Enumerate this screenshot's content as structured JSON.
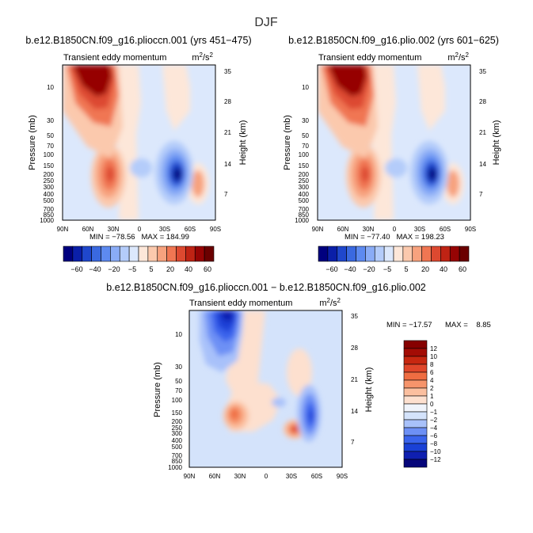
{
  "figure": {
    "title": "DJF",
    "diff_title": "b.e12.B1850CN.f09_g16.plioccn.001 − b.e12.B1850CN.f09_g16.plio.002"
  },
  "colors": {
    "main_scale": [
      "#00007f",
      "#0a1fa8",
      "#1f47cc",
      "#3a69e0",
      "#5d8af0",
      "#8aacf6",
      "#b4ccfa",
      "#dce8fc",
      "#fde7d9",
      "#fbc9ad",
      "#f7a27e",
      "#f07652",
      "#dd4930",
      "#bf2314",
      "#960404",
      "#6b0000"
    ],
    "diff_scale": [
      "#06067a",
      "#0f1fb0",
      "#1a41d6",
      "#3a64ec",
      "#6d90f5",
      "#a8c1fa",
      "#d4e3fb",
      "#f0f4fb",
      "#fde0cf",
      "#fbbf9f",
      "#f6946b",
      "#ef6d42",
      "#e0462a",
      "#c72710",
      "#a30c05",
      "#860000"
    ]
  },
  "chart_data": [
    {
      "type": "heatmap",
      "title": "b.e12.B1850CN.f09_g16.plioccn.001 (yrs 451−475)",
      "subtitle": "Transient eddy momentum",
      "units": "m²/s²",
      "ylabel": "Pressure (mb)",
      "y2label": "Height (km)",
      "x_ticks": [
        "90N",
        "60N",
        "30N",
        "0",
        "30S",
        "60S",
        "90S"
      ],
      "y_ticks": [
        "10",
        "30",
        "50",
        "70",
        "100",
        "150",
        "200",
        "250",
        "300",
        "400",
        "500",
        "700",
        "850",
        "1000"
      ],
      "y2_ticks": [
        "35",
        "28",
        "21",
        "14",
        "7"
      ],
      "minmax": "MIN = −78.56   MAX = 184.99",
      "colorbar_labels": [
        "−60",
        "−40",
        "−20",
        "−5",
        "5",
        "20",
        "40",
        "60"
      ],
      "features": [
        {
          "lat": 45,
          "pressure": 10,
          "value": 184.99
        },
        {
          "lat": 32,
          "pressure": 200,
          "value": 40
        },
        {
          "lat": -35,
          "pressure": 200,
          "value": -78.56
        },
        {
          "lat": -60,
          "pressure": 250,
          "value": 20
        }
      ]
    },
    {
      "type": "heatmap",
      "title": "b.e12.B1850CN.f09_g16.plio.002 (yrs 601−625)",
      "subtitle": "Transient eddy momentum",
      "units": "m²/s²",
      "ylabel": "Pressure (mb)",
      "y2label": "Height (km)",
      "x_ticks": [
        "90N",
        "60N",
        "30N",
        "0",
        "30S",
        "60S",
        "90S"
      ],
      "y_ticks": [
        "10",
        "30",
        "50",
        "70",
        "100",
        "150",
        "200",
        "250",
        "300",
        "400",
        "500",
        "700",
        "850",
        "1000"
      ],
      "y2_ticks": [
        "35",
        "28",
        "21",
        "14",
        "7"
      ],
      "minmax": "MIN = −77.40   MAX = 198.23",
      "colorbar_labels": [
        "−60",
        "−40",
        "−20",
        "−5",
        "5",
        "20",
        "40",
        "60"
      ],
      "features": [
        {
          "lat": 45,
          "pressure": 10,
          "value": 198.23
        },
        {
          "lat": 32,
          "pressure": 200,
          "value": 40
        },
        {
          "lat": -35,
          "pressure": 200,
          "value": -77.4
        },
        {
          "lat": -60,
          "pressure": 250,
          "value": 20
        }
      ]
    },
    {
      "type": "heatmap",
      "subtitle": "Transient eddy momentum",
      "units": "m²/s²",
      "ylabel": "Pressure (mb)",
      "y2label": "Height (km)",
      "x_ticks": [
        "90N",
        "60N",
        "30N",
        "0",
        "30S",
        "60S",
        "90S"
      ],
      "y_ticks": [
        "10",
        "30",
        "50",
        "70",
        "100",
        "150",
        "200",
        "250",
        "300",
        "400",
        "500",
        "700",
        "850",
        "1000"
      ],
      "y2_ticks": [
        "35",
        "28",
        "21",
        "14",
        "7"
      ],
      "min_text": "MIN = −17.57",
      "max_text": "MAX =    8.85",
      "colorbar_labels": [
        "12",
        "10",
        "8",
        "6",
        "4",
        "2",
        "1",
        "0",
        "−1",
        "−2",
        "−4",
        "−6",
        "−8",
        "−10",
        "−12"
      ],
      "features": [
        {
          "lat": 45,
          "pressure": 10,
          "value": -17.57
        },
        {
          "lat": 30,
          "pressure": 150,
          "value": 8
        },
        {
          "lat": -20,
          "pressure": 250,
          "value": 8.85
        },
        {
          "lat": -40,
          "pressure": 170,
          "value": -10
        }
      ]
    }
  ]
}
